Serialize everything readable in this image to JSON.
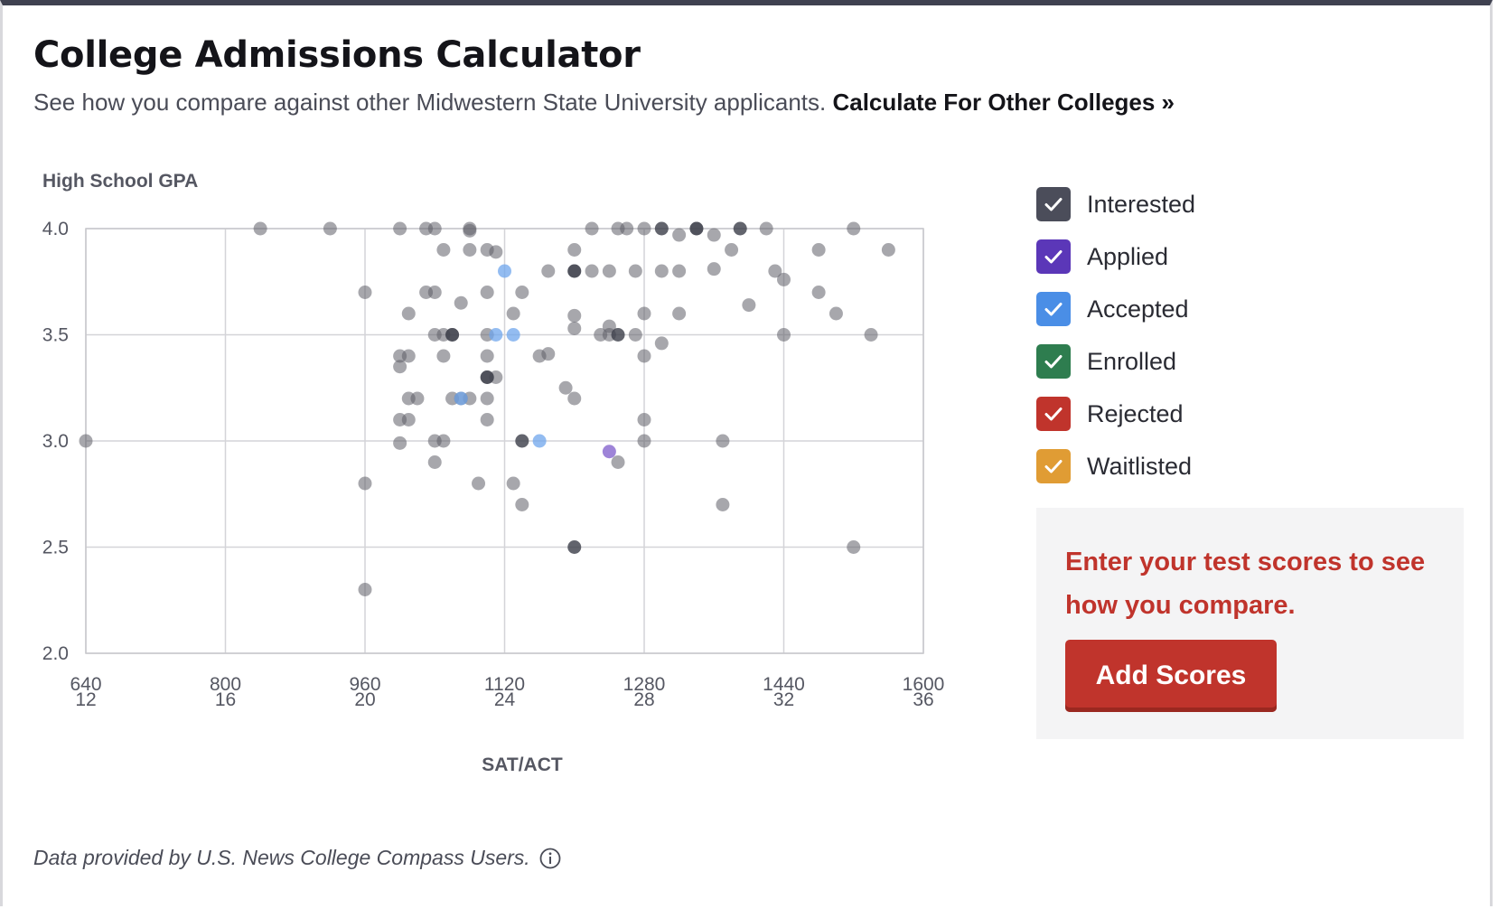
{
  "header": {
    "title": "College Admissions Calculator",
    "subtitle": "See how you compare against other Midwestern State University applicants.",
    "link_label": "Calculate For Other Colleges »"
  },
  "legend": {
    "items": [
      {
        "label": "Interested",
        "color": "#4b4d5a",
        "checked": true
      },
      {
        "label": "Applied",
        "color": "#5b37b8",
        "checked": true
      },
      {
        "label": "Accepted",
        "color": "#4a8ee6",
        "checked": true
      },
      {
        "label": "Enrolled",
        "color": "#2e7d4f",
        "checked": true
      },
      {
        "label": "Rejected",
        "color": "#c0342c",
        "checked": true
      },
      {
        "label": "Waitlisted",
        "color": "#e09c34",
        "checked": true
      }
    ]
  },
  "cta": {
    "message": "Enter your test scores to see how you compare.",
    "button_label": "Add Scores"
  },
  "footnote": {
    "text": "Data provided by U.S. News College Compass Users.",
    "icon": "info-icon"
  },
  "chart_data": {
    "type": "scatter",
    "ylabel": "High School GPA",
    "xlabel": "SAT/ACT",
    "xlim": [
      640,
      1600
    ],
    "ylim": [
      2.0,
      4.0
    ],
    "x_ticks": [
      {
        "sat": "640",
        "act": "12",
        "value": 640
      },
      {
        "sat": "800",
        "act": "16",
        "value": 800
      },
      {
        "sat": "960",
        "act": "20",
        "value": 960
      },
      {
        "sat": "1120",
        "act": "24",
        "value": 1120
      },
      {
        "sat": "1280",
        "act": "28",
        "value": 1280
      },
      {
        "sat": "1440",
        "act": "32",
        "value": 1440
      },
      {
        "sat": "1600",
        "act": "36",
        "value": 1600
      }
    ],
    "y_ticks": [
      {
        "label": "4.0",
        "value": 4.0
      },
      {
        "label": "3.5",
        "value": 3.5
      },
      {
        "label": "3.0",
        "value": 3.0
      },
      {
        "label": "2.5",
        "value": 2.5
      },
      {
        "label": "2.0",
        "value": 2.0
      }
    ],
    "grid": true,
    "series": [
      {
        "name": "Interested",
        "color": "#4b4d5a",
        "points": [
          [
            640,
            3.0
          ],
          [
            840,
            4.0
          ],
          [
            920,
            4.0
          ],
          [
            960,
            3.7
          ],
          [
            960,
            2.8
          ],
          [
            960,
            2.3
          ],
          [
            1000,
            4.0
          ],
          [
            1000,
            3.4
          ],
          [
            1000,
            3.35
          ],
          [
            1000,
            3.1
          ],
          [
            1000,
            2.99
          ],
          [
            1010,
            3.6
          ],
          [
            1010,
            3.4
          ],
          [
            1010,
            3.2
          ],
          [
            1010,
            3.1
          ],
          [
            1020,
            3.2
          ],
          [
            1030,
            4.0
          ],
          [
            1030,
            3.7
          ],
          [
            1040,
            4.0
          ],
          [
            1040,
            3.7
          ],
          [
            1040,
            3.5
          ],
          [
            1040,
            3.0
          ],
          [
            1040,
            2.9
          ],
          [
            1050,
            3.9
          ],
          [
            1050,
            3.5
          ],
          [
            1050,
            3.4
          ],
          [
            1050,
            3.0
          ],
          [
            1060,
            3.5
          ],
          [
            1060,
            3.2
          ],
          [
            1070,
            3.65
          ],
          [
            1070,
            3.2
          ],
          [
            1080,
            4.0
          ],
          [
            1080,
            3.99
          ],
          [
            1080,
            3.9
          ],
          [
            1080,
            3.2
          ],
          [
            1090,
            2.8
          ],
          [
            1100,
            3.9
          ],
          [
            1100,
            3.7
          ],
          [
            1100,
            3.5
          ],
          [
            1100,
            3.4
          ],
          [
            1100,
            3.3
          ],
          [
            1100,
            3.2
          ],
          [
            1100,
            3.1
          ],
          [
            1110,
            3.89
          ],
          [
            1110,
            3.3
          ],
          [
            1130,
            3.6
          ],
          [
            1130,
            2.8
          ],
          [
            1140,
            3.7
          ],
          [
            1140,
            2.7
          ],
          [
            1160,
            3.4
          ],
          [
            1170,
            3.8
          ],
          [
            1170,
            3.41
          ],
          [
            1190,
            3.25
          ],
          [
            1200,
            3.9
          ],
          [
            1200,
            3.8
          ],
          [
            1200,
            3.59
          ],
          [
            1200,
            3.53
          ],
          [
            1200,
            3.2
          ],
          [
            1220,
            4.0
          ],
          [
            1220,
            3.8
          ],
          [
            1230,
            3.5
          ],
          [
            1240,
            3.8
          ],
          [
            1240,
            3.54
          ],
          [
            1240,
            3.5
          ],
          [
            1250,
            4.0
          ],
          [
            1250,
            2.9
          ],
          [
            1260,
            4.0
          ],
          [
            1270,
            3.8
          ],
          [
            1270,
            3.5
          ],
          [
            1280,
            4.0
          ],
          [
            1280,
            3.6
          ],
          [
            1280,
            3.4
          ],
          [
            1280,
            3.1
          ],
          [
            1280,
            3.0
          ],
          [
            1300,
            3.8
          ],
          [
            1300,
            3.46
          ],
          [
            1320,
            3.97
          ],
          [
            1320,
            3.8
          ],
          [
            1320,
            3.6
          ],
          [
            1340,
            4.0
          ],
          [
            1360,
            3.97
          ],
          [
            1360,
            3.81
          ],
          [
            1370,
            3.0
          ],
          [
            1370,
            2.7
          ],
          [
            1380,
            3.9
          ],
          [
            1400,
            3.64
          ],
          [
            1420,
            4.0
          ],
          [
            1430,
            3.8
          ],
          [
            1440,
            3.76
          ],
          [
            1440,
            3.5
          ],
          [
            1480,
            3.9
          ],
          [
            1480,
            3.7
          ],
          [
            1500,
            3.6
          ],
          [
            1520,
            4.0
          ],
          [
            1520,
            2.5
          ],
          [
            1540,
            3.5
          ],
          [
            1560,
            3.9
          ]
        ]
      },
      {
        "name": "Interested",
        "color": "#4b4d5a",
        "dark": true,
        "points": [
          [
            1060,
            3.5
          ],
          [
            1100,
            3.3
          ],
          [
            1140,
            3.0
          ],
          [
            1200,
            3.8
          ],
          [
            1200,
            2.5
          ],
          [
            1250,
            3.5
          ],
          [
            1300,
            4.0
          ],
          [
            1340,
            4.0
          ],
          [
            1390,
            4.0
          ]
        ]
      },
      {
        "name": "Accepted",
        "color": "#4a8ee6",
        "points": [
          [
            1120,
            3.8
          ],
          [
            1110,
            3.5
          ],
          [
            1130,
            3.5
          ],
          [
            1160,
            3.0
          ],
          [
            1070,
            3.2
          ]
        ]
      },
      {
        "name": "Applied",
        "color": "#5b37b8",
        "points": [
          [
            1240,
            2.95
          ]
        ]
      }
    ]
  }
}
